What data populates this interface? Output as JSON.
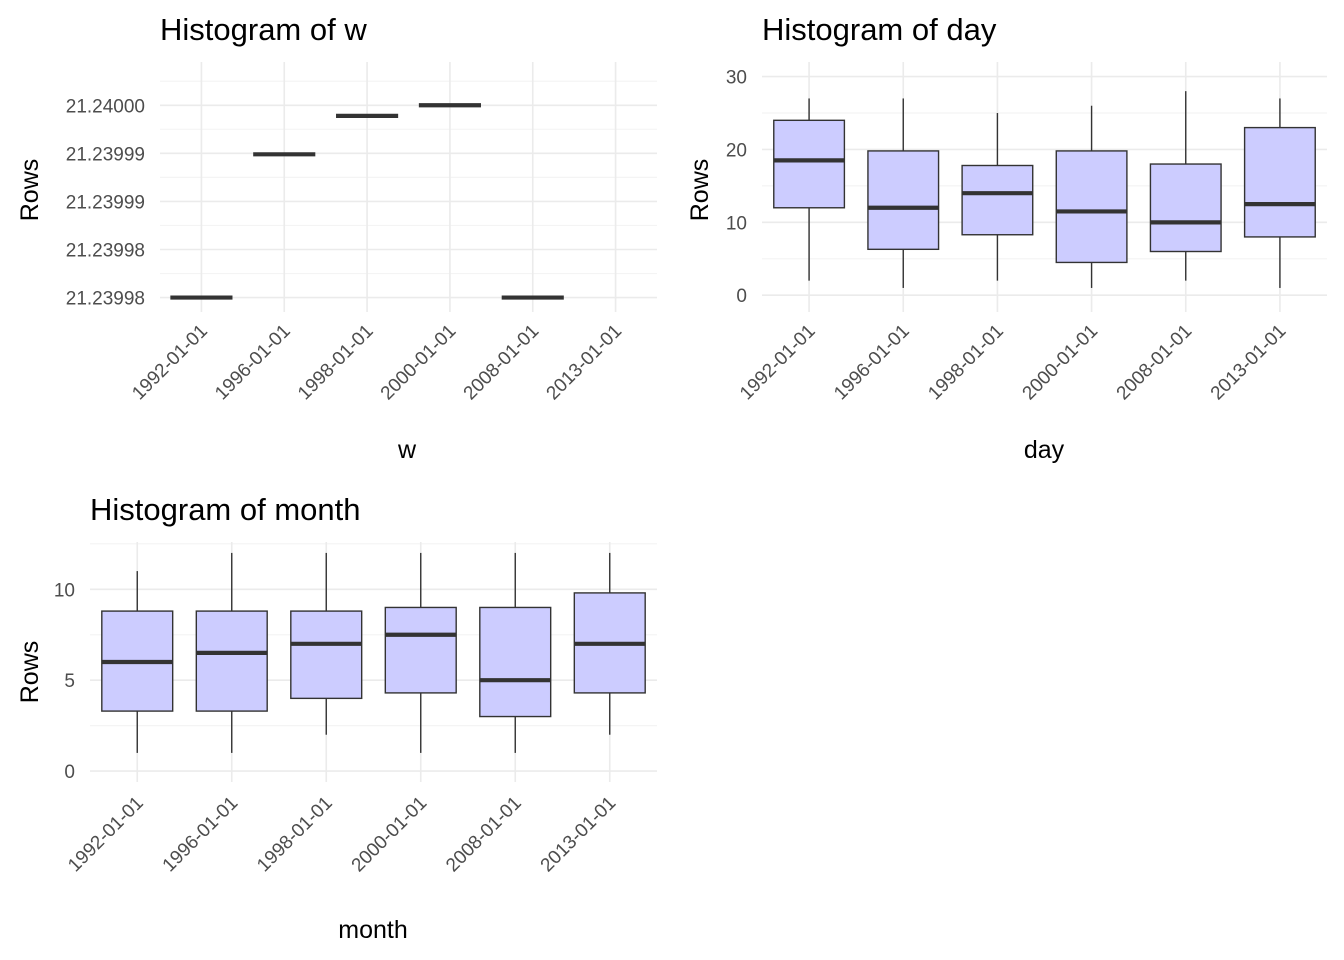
{
  "colors": {
    "box_fill": "#ccccff",
    "box_stroke": "#333333",
    "grid_major": "#ebebeb",
    "grid_minor": "#f4f4f4",
    "tick_text": "#4d4d4d"
  },
  "chart_data": [
    {
      "type": "boxplot",
      "title": "Histogram of w",
      "xlabel": "w",
      "ylabel": "Rows",
      "categories": [
        "1992-01-01",
        "1996-01-01",
        "1998-01-01",
        "2000-01-01",
        "2008-01-01",
        "2013-01-01"
      ],
      "y_tick_values": [
        21.23998,
        21.239985,
        21.23999,
        21.239995,
        21.24
      ],
      "y_tick_labels": [
        "21.23998",
        "21.23998",
        "21.23999",
        "21.23999",
        "21.24000"
      ],
      "ylim": [
        21.2399785,
        21.2400045
      ],
      "boxes": [
        {
          "category": "1992-01-01",
          "min": 21.23998,
          "q1": 21.23998,
          "median": 21.23998,
          "q3": 21.23998,
          "max": 21.23998
        },
        {
          "category": "1996-01-01",
          "min": 21.2399949,
          "q1": 21.2399949,
          "median": 21.2399949,
          "q3": 21.2399949,
          "max": 21.2399949
        },
        {
          "category": "1998-01-01",
          "min": 21.2399989,
          "q1": 21.2399989,
          "median": 21.2399989,
          "q3": 21.2399989,
          "max": 21.2399989
        },
        {
          "category": "2000-01-01",
          "min": 21.24,
          "q1": 21.24,
          "median": 21.24,
          "q3": 21.24,
          "max": 21.24
        },
        {
          "category": "2008-01-01",
          "min": 21.23998,
          "q1": 21.23998,
          "median": 21.23998,
          "q3": 21.23998,
          "max": 21.23998
        }
      ]
    },
    {
      "type": "boxplot",
      "title": "Histogram of day",
      "xlabel": "day",
      "ylabel": "Rows",
      "categories": [
        "1992-01-01",
        "1996-01-01",
        "1998-01-01",
        "2000-01-01",
        "2008-01-01",
        "2013-01-01"
      ],
      "y_tick_values": [
        0,
        10,
        20,
        30
      ],
      "y_tick_labels": [
        "0",
        "10",
        "20",
        "30"
      ],
      "ylim": [
        -2.3,
        32
      ],
      "boxes": [
        {
          "category": "1992-01-01",
          "min": 2,
          "q1": 12,
          "median": 18.5,
          "q3": 24,
          "max": 27
        },
        {
          "category": "1996-01-01",
          "min": 1,
          "q1": 6.3,
          "median": 12,
          "q3": 19.8,
          "max": 27
        },
        {
          "category": "1998-01-01",
          "min": 2,
          "q1": 8.3,
          "median": 14,
          "q3": 17.8,
          "max": 25
        },
        {
          "category": "2000-01-01",
          "min": 1,
          "q1": 4.5,
          "median": 11.5,
          "q3": 19.8,
          "max": 26
        },
        {
          "category": "2008-01-01",
          "min": 2,
          "q1": 6,
          "median": 10,
          "q3": 18,
          "max": 28
        },
        {
          "category": "2013-01-01",
          "min": 1,
          "q1": 8,
          "median": 12.5,
          "q3": 23,
          "max": 27
        }
      ]
    },
    {
      "type": "boxplot",
      "title": "Histogram of month",
      "xlabel": "month",
      "ylabel": "Rows",
      "categories": [
        "1992-01-01",
        "1996-01-01",
        "1998-01-01",
        "2000-01-01",
        "2008-01-01",
        "2013-01-01"
      ],
      "y_tick_values": [
        0,
        5,
        10
      ],
      "y_tick_labels": [
        "0",
        "5",
        "10"
      ],
      "ylim": [
        -0.6,
        12.6
      ],
      "boxes": [
        {
          "category": "1992-01-01",
          "min": 1,
          "q1": 3.3,
          "median": 6,
          "q3": 8.8,
          "max": 11
        },
        {
          "category": "1996-01-01",
          "min": 1,
          "q1": 3.3,
          "median": 6.5,
          "q3": 8.8,
          "max": 12
        },
        {
          "category": "1998-01-01",
          "min": 2,
          "q1": 4,
          "median": 7,
          "q3": 8.8,
          "max": 12
        },
        {
          "category": "2000-01-01",
          "min": 1,
          "q1": 4.3,
          "median": 7.5,
          "q3": 9,
          "max": 12
        },
        {
          "category": "2008-01-01",
          "min": 1,
          "q1": 3,
          "median": 5,
          "q3": 9,
          "max": 12
        },
        {
          "category": "2013-01-01",
          "min": 2,
          "q1": 4.3,
          "median": 7,
          "q3": 9.8,
          "max": 12
        }
      ]
    }
  ]
}
